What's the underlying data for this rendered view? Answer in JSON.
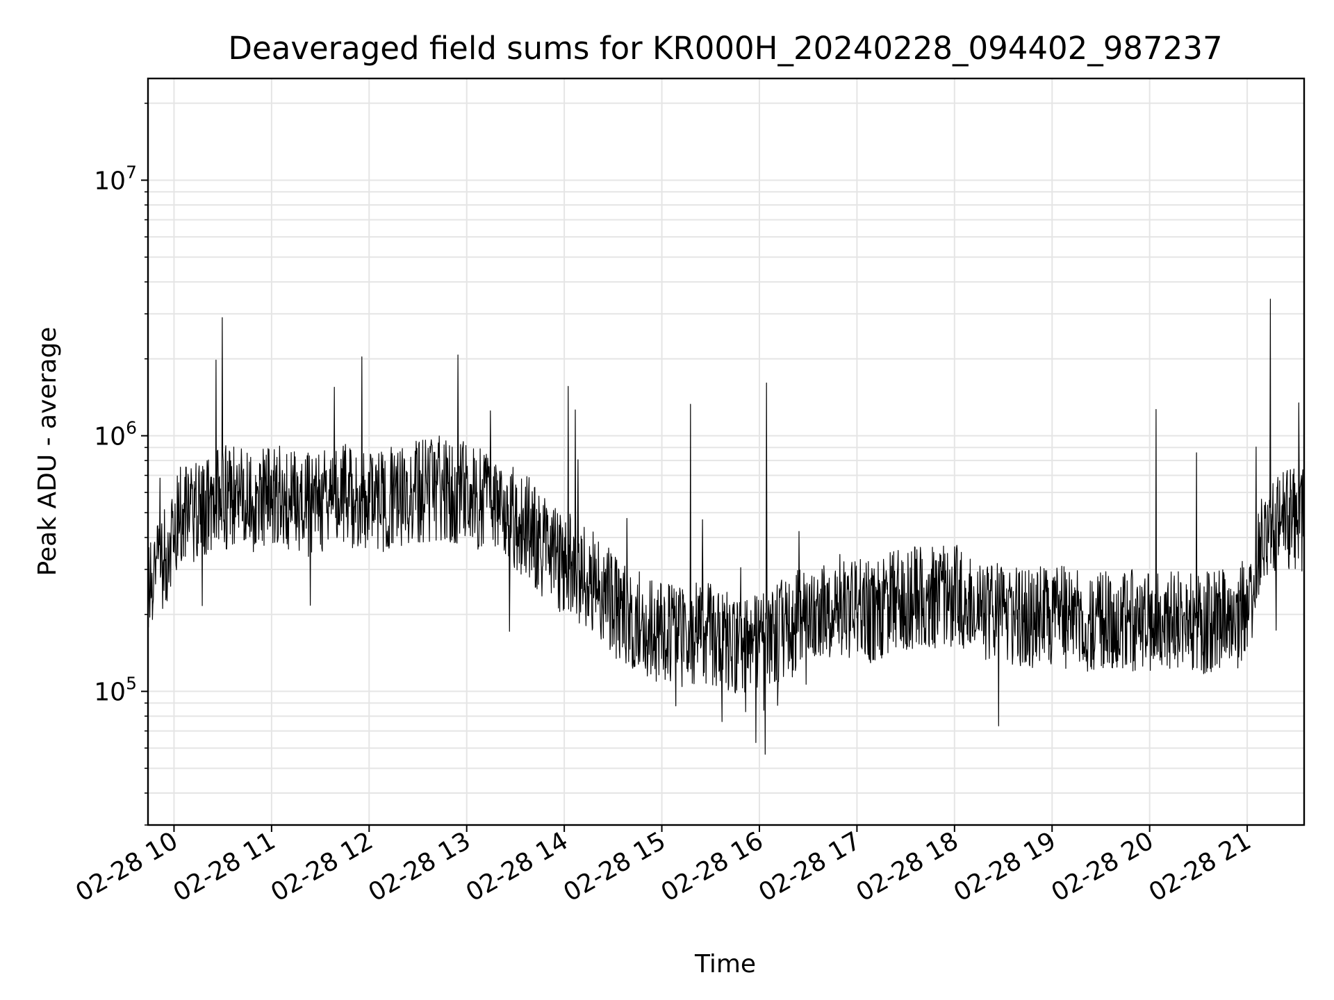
{
  "chart_data": {
    "type": "line",
    "title": "Deaveraged field sums for KR000H_20240228_094402_987237",
    "xlabel": "Time",
    "ylabel": "Peak ADU - average",
    "yscale": "log",
    "grid": true,
    "line_color": "#000000",
    "grid_color": "#e5e5e5",
    "x_range": [
      "2024-02-28 09:44",
      "2024-02-28 21:35"
    ],
    "ylim": [
      30000,
      25000000
    ],
    "x_ticks": [
      "02-28 10",
      "02-28 11",
      "02-28 12",
      "02-28 13",
      "02-28 14",
      "02-28 15",
      "02-28 16",
      "02-28 17",
      "02-28 18",
      "02-28 19",
      "02-28 20",
      "02-28 21"
    ],
    "y_ticks": [
      {
        "base": "10",
        "exp": "5",
        "value": 100000
      },
      {
        "base": "10",
        "exp": "6",
        "value": 1000000
      },
      {
        "base": "10",
        "exp": "7",
        "value": 10000000
      }
    ],
    "series": [
      {
        "x": [
          "2024-02-28 09:44",
          "2024-02-28 09:46",
          "2024-02-28 09:48",
          "2024-02-28 09:51",
          "2024-02-28 09:55",
          "2024-02-28 10:00",
          "2024-02-28 10:05",
          "2024-02-28 10:10",
          "2024-02-28 10:15",
          "2024-02-28 10:20",
          "2024-02-28 10:30",
          "2024-02-28 10:40",
          "2024-02-28 10:50",
          "2024-02-28 11:00",
          "2024-02-28 11:10",
          "2024-02-28 11:20",
          "2024-02-28 11:30",
          "2024-02-28 11:40",
          "2024-02-28 11:50",
          "2024-02-28 12:00",
          "2024-02-28 12:10",
          "2024-02-28 12:20",
          "2024-02-28 12:30",
          "2024-02-28 12:40",
          "2024-02-28 12:50",
          "2024-02-28 13:00",
          "2024-02-28 13:10",
          "2024-02-28 13:20",
          "2024-02-28 13:30",
          "2024-02-28 13:40",
          "2024-02-28 13:50",
          "2024-02-28 14:00",
          "2024-02-28 14:10",
          "2024-02-28 14:20",
          "2024-02-28 14:30",
          "2024-02-28 14:40",
          "2024-02-28 14:50",
          "2024-02-28 15:00",
          "2024-02-28 15:10",
          "2024-02-28 15:20",
          "2024-02-28 15:30",
          "2024-02-28 15:40",
          "2024-02-28 15:50",
          "2024-02-28 16:00",
          "2024-02-28 16:10",
          "2024-02-28 16:20",
          "2024-02-28 16:30",
          "2024-02-28 16:40",
          "2024-02-28 16:50",
          "2024-02-28 17:00",
          "2024-02-28 17:10",
          "2024-02-28 17:20",
          "2024-02-28 17:30",
          "2024-02-28 17:40",
          "2024-02-28 17:50",
          "2024-02-28 18:00",
          "2024-02-28 18:10",
          "2024-02-28 18:20",
          "2024-02-28 18:30",
          "2024-02-28 18:40",
          "2024-02-28 18:50",
          "2024-02-28 19:00",
          "2024-02-28 19:10",
          "2024-02-28 19:20",
          "2024-02-28 19:30",
          "2024-02-28 19:40",
          "2024-02-28 19:50",
          "2024-02-28 20:00",
          "2024-02-28 20:10",
          "2024-02-28 20:20",
          "2024-02-28 20:30",
          "2024-02-28 20:40",
          "2024-02-28 20:50",
          "2024-02-28 21:00",
          "2024-02-28 21:10",
          "2024-02-28 21:20",
          "2024-02-28 21:30",
          "2024-02-28 21:35"
        ],
        "y": [
          250000,
          320000,
          280000,
          300000,
          330000,
          450000,
          520000,
          480000,
          550000,
          530000,
          580000,
          560000,
          540000,
          600000,
          570000,
          530000,
          560000,
          590000,
          580000,
          550000,
          560000,
          580000,
          600000,
          620000,
          610000,
          590000,
          560000,
          520000,
          480000,
          420000,
          350000,
          320000,
          290000,
          260000,
          220000,
          190000,
          180000,
          170000,
          160000,
          170000,
          165000,
          160000,
          155000,
          160000,
          170000,
          180000,
          200000,
          210000,
          220000,
          210000,
          200000,
          220000,
          230000,
          240000,
          230000,
          240000,
          220000,
          210000,
          200000,
          190000,
          190000,
          200000,
          195000,
          190000,
          185000,
          195000,
          190000,
          180000,
          185000,
          190000,
          185000,
          190000,
          185000,
          210000,
          400000,
          450000,
          470000,
          460000
        ]
      }
    ]
  }
}
